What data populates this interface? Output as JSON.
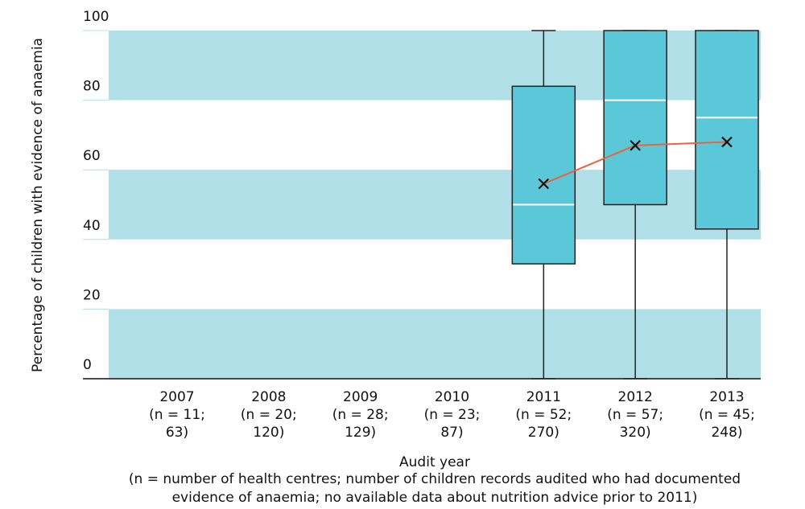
{
  "chart_data": {
    "type": "box",
    "y_label": "Percentage of children with evidence of anaemia",
    "x_label": "Audit year",
    "footnote": [
      "(n = number of health centres; number of children records audited who had documented",
      "evidence of anaemia; no available data about nutrition advice prior to 2011)"
    ],
    "categories": [
      "2007",
      "2008",
      "2009",
      "2010",
      "2011",
      "2012",
      "2013"
    ],
    "category_notes": [
      [
        "(n = 11;",
        "63)"
      ],
      [
        "(n = 20;",
        "120)"
      ],
      [
        "(n = 28;",
        "129)"
      ],
      [
        "(n = 23;",
        "87)"
      ],
      [
        "(n = 52;",
        "270)"
      ],
      [
        "(n = 57;",
        "320)"
      ],
      [
        "(n = 45;",
        "248)"
      ]
    ],
    "boxes": {
      "min": [
        null,
        null,
        null,
        null,
        0,
        0,
        0
      ],
      "q1": [
        null,
        null,
        null,
        null,
        33,
        50,
        43
      ],
      "median": [
        null,
        null,
        null,
        null,
        50,
        80,
        75
      ],
      "q3": [
        null,
        null,
        null,
        null,
        84,
        100,
        100
      ],
      "max": [
        null,
        null,
        null,
        null,
        100,
        100,
        100
      ],
      "mean": [
        null,
        null,
        null,
        null,
        56,
        67,
        68
      ]
    },
    "box_color": "#5bc8d9",
    "mean_line_color": "#e8643c",
    "band_color": "#b1dfe7",
    "ylim": [
      0,
      100
    ],
    "yticks": [
      0,
      20,
      40,
      60,
      80,
      100
    ]
  }
}
